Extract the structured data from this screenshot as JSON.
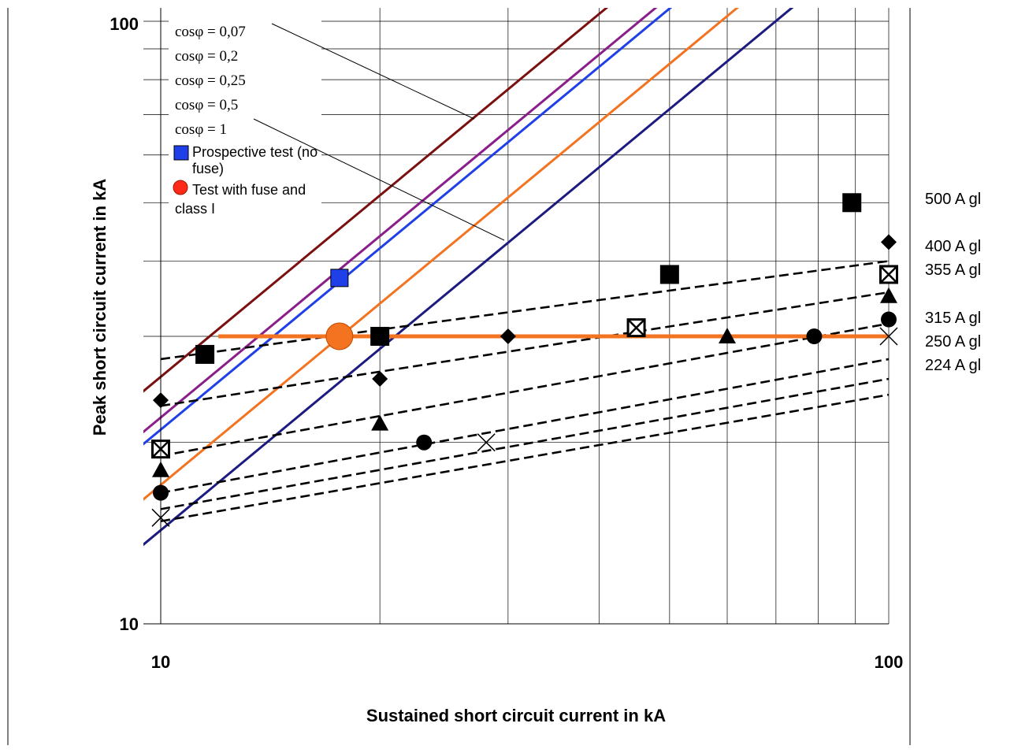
{
  "chart_data": {
    "type": "line",
    "x_scale": "log",
    "y_scale": "log",
    "xlim": [
      10,
      100
    ],
    "ylim": [
      10,
      100
    ],
    "x_ticks": [
      "10",
      "100"
    ],
    "y_ticks": [
      "10",
      "100"
    ],
    "xlabel": "Sustained short circuit current in kA",
    "ylabel": "Peak short circuit current in kA",
    "grid": true,
    "power_factor_curves": [
      {
        "name": "cosφ = 0,07",
        "color": "#7a1010",
        "factor": 2.57
      },
      {
        "name": "cosφ = 0,2",
        "color": "#8a1e8a",
        "factor": 2.2
      },
      {
        "name": "cosφ = 0,25",
        "color": "#1f3fe8",
        "factor": 2.1
      },
      {
        "name": "cosφ = 0,5",
        "color": "#f37320",
        "factor": 1.7
      },
      {
        "name": "cosφ = 1",
        "color": "#1c1c80",
        "factor": 1.43
      }
    ],
    "fuse_lines": [
      {
        "name": "500 A gl",
        "x": [
          10,
          100
        ],
        "y": [
          27.5,
          40.0
        ]
      },
      {
        "name": "400 A gl",
        "x": [
          10,
          100
        ],
        "y": [
          23.0,
          35.5
        ]
      },
      {
        "name": "355 A gl",
        "x": [
          10,
          100
        ],
        "y": [
          19.0,
          31.5
        ]
      },
      {
        "name": "315 A gl",
        "x": [
          10,
          100
        ],
        "y": [
          16.5,
          27.5
        ]
      },
      {
        "name": "250 A gl",
        "x": [
          10,
          100
        ],
        "y": [
          15.5,
          25.5
        ]
      },
      {
        "name": "224 A gl",
        "x": [
          10,
          100
        ],
        "y": [
          14.8,
          24.0
        ]
      }
    ],
    "test_level": {
      "x": [
        12,
        100
      ],
      "y": 30,
      "color": "#f37320"
    },
    "prospective_test": {
      "label": "Prospective test (no fuse)",
      "x": 17.6,
      "y": 37.5,
      "color": "#1f3fe8"
    },
    "fuse_test": {
      "label": "Test with fuse and class I",
      "x": 17.6,
      "y": 30,
      "color": "#f37320"
    },
    "markers": [
      {
        "shape": "square",
        "x": 11.5,
        "y": 28.0
      },
      {
        "shape": "square",
        "x": 20,
        "y": 30.0
      },
      {
        "shape": "square",
        "x": 50,
        "y": 38.0
      },
      {
        "shape": "square",
        "x": 89,
        "y": 50.0
      },
      {
        "shape": "diamond",
        "x": 10,
        "y": 23.5
      },
      {
        "shape": "diamond",
        "x": 20,
        "y": 25.5
      },
      {
        "shape": "diamond",
        "x": 30,
        "y": 30.0
      },
      {
        "shape": "diamond",
        "x": 100,
        "y": 43.0
      },
      {
        "shape": "boxx",
        "x": 10,
        "y": 19.5
      },
      {
        "shape": "boxx",
        "x": 45,
        "y": 31.0
      },
      {
        "shape": "boxx",
        "x": 100,
        "y": 38.0
      },
      {
        "shape": "triangle",
        "x": 10,
        "y": 18.0
      },
      {
        "shape": "triangle",
        "x": 20,
        "y": 21.5
      },
      {
        "shape": "triangle",
        "x": 60,
        "y": 30.0
      },
      {
        "shape": "triangle",
        "x": 100,
        "y": 35.0
      },
      {
        "shape": "circle",
        "x": 10,
        "y": 16.5
      },
      {
        "shape": "circle",
        "x": 23,
        "y": 20.0
      },
      {
        "shape": "circle",
        "x": 79,
        "y": 30.0
      },
      {
        "shape": "circle",
        "x": 100,
        "y": 32.0
      },
      {
        "shape": "x",
        "x": 10,
        "y": 15.0
      },
      {
        "shape": "x",
        "x": 28,
        "y": 20.0
      },
      {
        "shape": "x",
        "x": 100,
        "y": 30.0
      }
    ]
  }
}
